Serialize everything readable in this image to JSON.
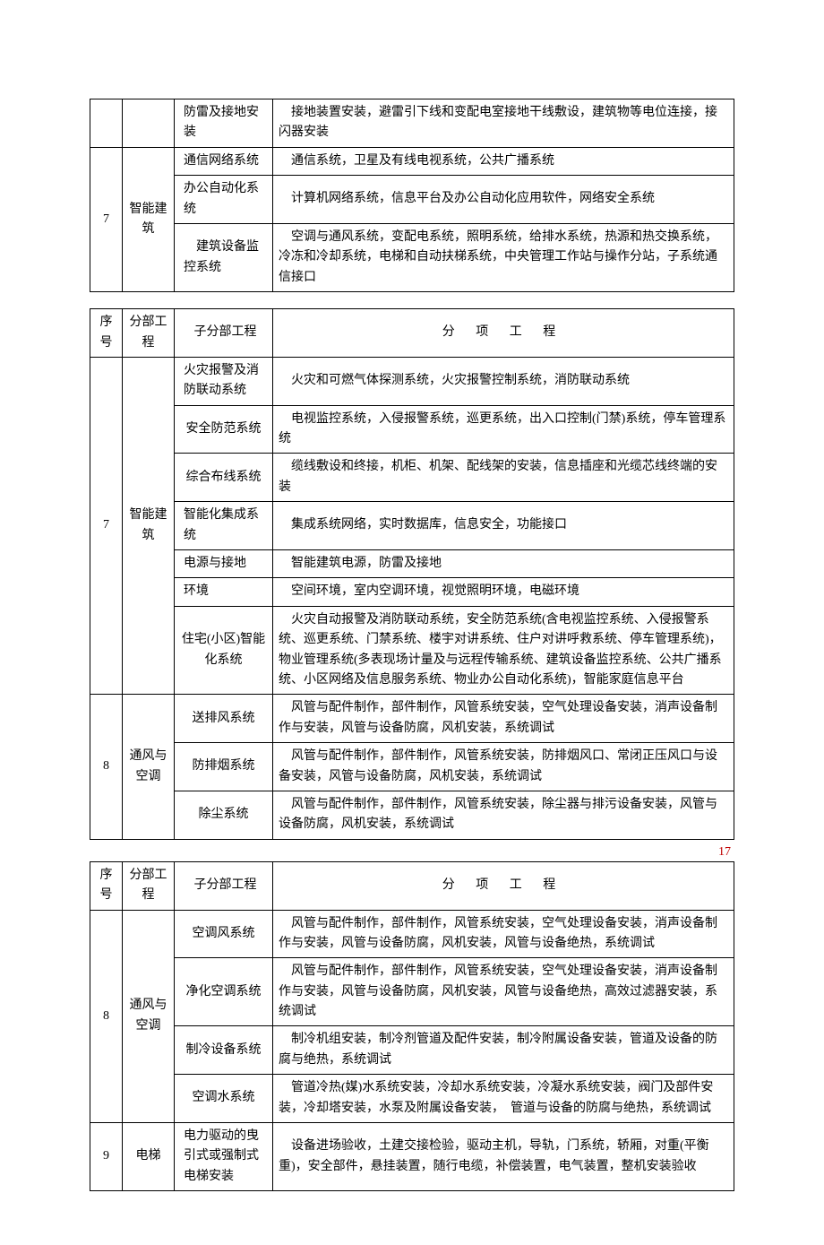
{
  "page_number": "17",
  "colors": {
    "page_num": "#c00000",
    "border": "#000000",
    "text": "#000000",
    "bg": "#ffffff"
  },
  "headers": {
    "seq": "序号",
    "part": "分部工程",
    "sub": "子分部工程",
    "item": "分 项 工 程"
  },
  "t1": {
    "r1_sub": "防雷及接地安装",
    "r1_item": "　接地装置安装，避雷引下线和变配电室接地干线敷设，建筑物等电位连接，接闪器安装",
    "r2_seq": "7",
    "r2_part": "智能建筑",
    "r2a_sub": "通信网络系统",
    "r2a_item": "　通信系统，卫星及有线电视系统，公共广播系统",
    "r2b_sub": "办公自动化系统",
    "r2b_item": "　计算机网络系统，信息平台及办公自动化应用软件，网络安全系统",
    "r2c_sub": "　建筑设备监控系统",
    "r2c_item": "　空调与通风系统，变配电系统，照明系统，给排水系统，热源和热交换系统，冷冻和冷却系统，电梯和自动扶梯系统，中央管理工作站与操作分站，子系统通信接口"
  },
  "t2": {
    "r7_seq": "7",
    "r7_part": "智能建筑",
    "r7a_sub": "火灾报警及消防联动系统",
    "r7a_item": "　火灾和可燃气体探测系统，火灾报警控制系统，消防联动系统",
    "r7b_sub": "安全防范系统",
    "r7b_item": "　电视监控系统，入侵报警系统，巡更系统，出入口控制(门禁)系统，停车管理系统",
    "r7c_sub": "综合布线系统",
    "r7c_item": "　缆线敷设和终接，机柜、机架、配线架的安装，信息插座和光缆芯线终端的安装",
    "r7d_sub": "智能化集成系统",
    "r7d_item": "　集成系统网络，实时数据库，信息安全，功能接口",
    "r7e_sub": "电源与接地",
    "r7e_item": "　智能建筑电源，防雷及接地",
    "r7f_sub": "环境",
    "r7f_item": "　空间环境，室内空调环境，视觉照明环境，电磁环境",
    "r7g_sub": "住宅(小区)智能化系统",
    "r7g_item": "　火灾自动报警及消防联动系统，安全防范系统(含电视监控系统、入侵报警系统、巡更系统、门禁系统、楼宇对讲系统、住户对讲呼救系统、停车管理系统)，物业管理系统(多表现场计量及与远程传输系统、建筑设备监控系统、公共广播系统、小区网络及信息服务系统、物业办公自动化系统)，智能家庭信息平台",
    "r8_seq": "8",
    "r8_part": "通风与空调",
    "r8a_sub": "送排风系统",
    "r8a_item": "　风管与配件制作，部件制作，风管系统安装，空气处理设备安装，消声设备制作与安装，风管与设备防腐，风机安装，系统调试",
    "r8b_sub": "防排烟系统",
    "r8b_item": "　风管与配件制作，部件制作，风管系统安装，防排烟风口、常闭正压风口与设备安装，风管与设备防腐，风机安装，系统调试",
    "r8c_sub": "除尘系统",
    "r8c_item": "　风管与配件制作，部件制作，风管系统安装，除尘器与排污设备安装，风管与设备防腐，风机安装，系统调试"
  },
  "t3": {
    "r8_seq": "8",
    "r8_part": "通风与空调",
    "r8a_sub": "空调风系统",
    "r8a_item": "　风管与配件制作，部件制作，风管系统安装，空气处理设备安装，消声设备制作与安装，风管与设备防腐，风机安装，风管与设备绝热，系统调试",
    "r8b_sub": "净化空调系统",
    "r8b_item": "　风管与配件制作，部件制作，风管系统安装，空气处理设备安装，消声设备制作与安装，风管与设备防腐，风机安装，风管与设备绝热，高效过滤器安装，系统调试",
    "r8c_sub": "制冷设备系统",
    "r8c_item": "　制冷机组安装，制冷剂管道及配件安装，制冷附属设备安装，管道及设备的防腐与绝热，系统调试",
    "r8d_sub": "空调水系统",
    "r8d_item": "　管道冷热(媒)水系统安装，冷却水系统安装，冷凝水系统安装，阀门及部件安装，冷却塔安装，水泵及附属设备安装，　管道与设备的防腐与绝热，系统调试",
    "r9_seq": "9",
    "r9_part": "电梯",
    "r9a_sub": "电力驱动的曳引式或强制式电梯安装",
    "r9a_item": "　设备进场验收，土建交接检验，驱动主机，导轨，门系统，轿厢，对重(平衡重)，安全部件，悬挂装置，随行电缆，补偿装置，电气装置，整机安装验收"
  }
}
